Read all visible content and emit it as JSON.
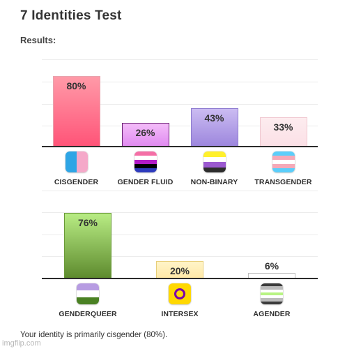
{
  "header": {
    "title": "7 Identities Test",
    "subtitle": "Results:"
  },
  "summary": "Your identity is primarily cisgender (80%).",
  "watermark": "imgflip.com",
  "chart_data": [
    {
      "type": "bar",
      "categories": [
        "CISGENDER",
        "GENDER FLUID",
        "NON-BINARY",
        "TRANSGENDER"
      ],
      "values": [
        80,
        26,
        43,
        33
      ],
      "value_labels": [
        "80%",
        "26%",
        "43%",
        "33%"
      ],
      "ylim": [
        0,
        100
      ],
      "grid": true,
      "colors": [
        {
          "top": "#ff9aa8",
          "bottom": "#ff5478",
          "border": "#e8a2ad"
        },
        {
          "top": "#f4bdf9",
          "bottom": "#e08bf0",
          "border": "#6a1f73"
        },
        {
          "top": "#cbbcf2",
          "bottom": "#9d87dd",
          "border": "#8e7bd0"
        },
        {
          "top": "#fdecef",
          "bottom": "#fbe0e6",
          "border": "#f0c8d0"
        }
      ],
      "flags": [
        [
          "#2ea5e5",
          "#f5a9c9"
        ],
        [
          "#f46fa6",
          "#ffffff",
          "#b21bc6",
          "#000000",
          "#2e3bbd"
        ],
        [
          "#fff02d",
          "#ffffff",
          "#9b59d0",
          "#2d2d2d"
        ],
        [
          "#5bcefa",
          "#f5a9b8",
          "#ffffff",
          "#f5a9b8",
          "#5bcefa"
        ]
      ]
    },
    {
      "type": "bar",
      "categories": [
        "GENDERQUEER",
        "INTERSEX",
        "AGENDER"
      ],
      "values": [
        76,
        20,
        6
      ],
      "value_labels": [
        "76%",
        "20%",
        "6%"
      ],
      "ylim": [
        0,
        100
      ],
      "grid": true,
      "colors": [
        {
          "top": "#b8ec84",
          "bottom": "#5e8b2e",
          "border": "#6a9a38"
        },
        {
          "top": "#fff4c8",
          "bottom": "#ffe9a8",
          "border": "#e8cf7a"
        },
        {
          "top": "#ffffff",
          "bottom": "#ffffff",
          "border": "#bdbdbd"
        }
      ],
      "flags": [
        [
          "#b79ce2",
          "#ffffff",
          "#4a8123"
        ],
        [
          "#ffd800",
          "#7a00ac"
        ],
        [
          "#3b3b3b",
          "#bcbcbc",
          "#ffffff",
          "#b8f483",
          "#ffffff",
          "#bcbcbc",
          "#3b3b3b"
        ]
      ]
    }
  ]
}
